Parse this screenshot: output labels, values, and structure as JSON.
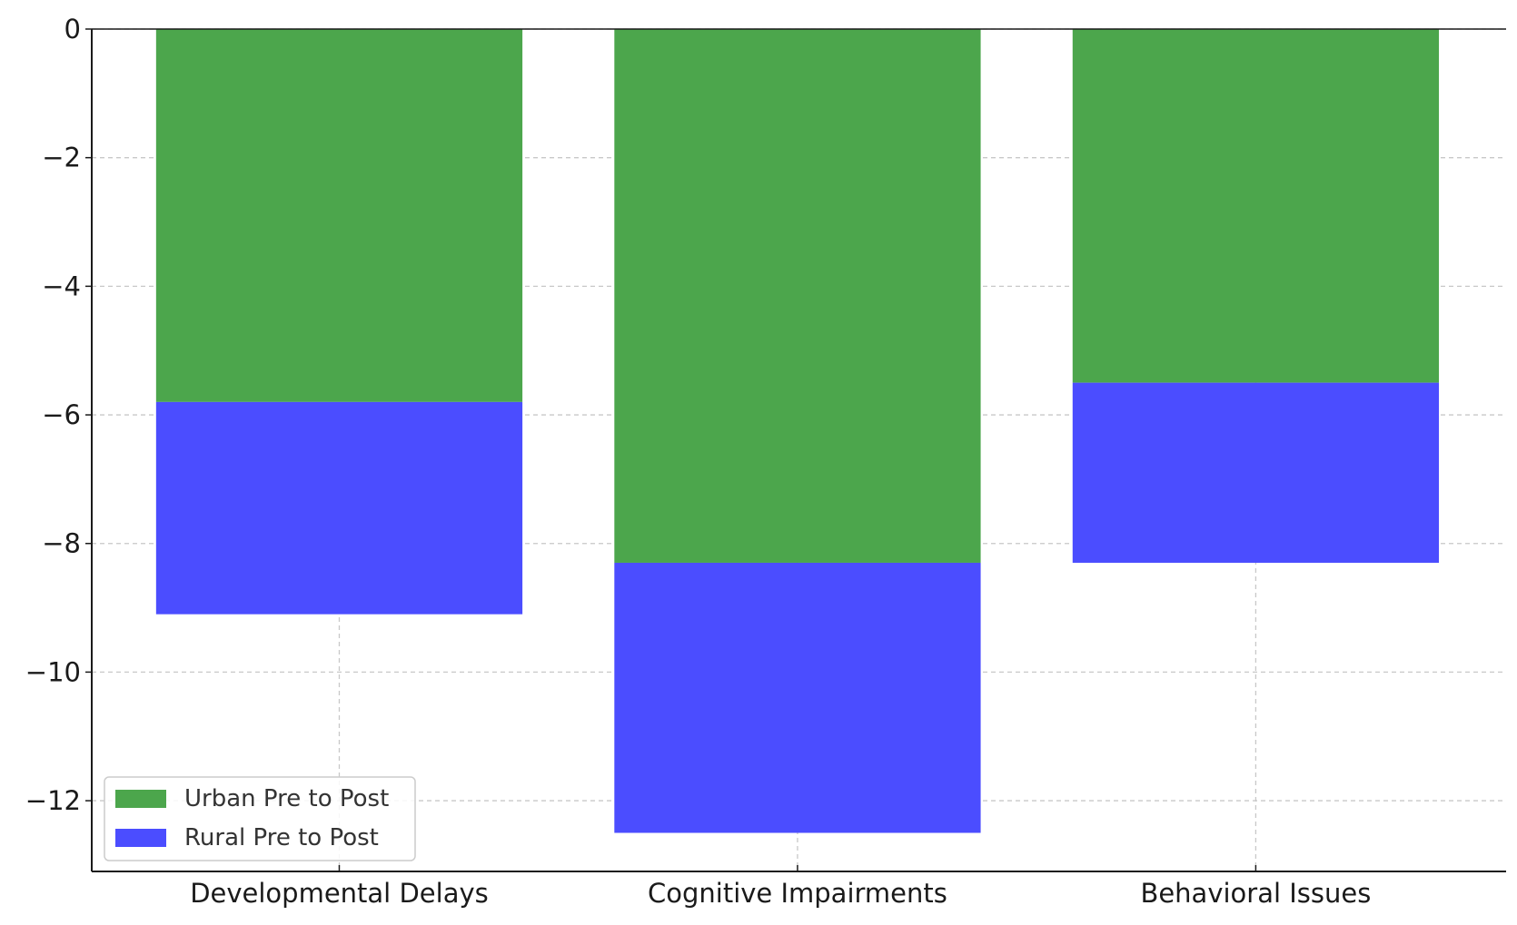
{
  "chart_data": {
    "type": "bar",
    "stacked": true,
    "categories": [
      "Developmental Delays",
      "Cognitive Impairments",
      "Behavioral Issues"
    ],
    "series": [
      {
        "name": "Urban Pre to Post",
        "values": [
          -5.8,
          -8.3,
          -5.5
        ],
        "color": "#4ca64c"
      },
      {
        "name": "Rural Pre to Post",
        "values": [
          -3.3,
          -4.2,
          -2.8
        ],
        "color": "#4b4dff"
      }
    ],
    "title": "",
    "xlabel": "",
    "ylabel": "",
    "ylim": [
      -13.1,
      0
    ],
    "yticks": [
      0,
      -2,
      -4,
      -6,
      -8,
      -10,
      -12
    ],
    "ytick_labels": [
      "0",
      "−2",
      "−4",
      "−6",
      "−8",
      "−10",
      "−12"
    ],
    "grid": true,
    "legend_position": "lower-left"
  }
}
